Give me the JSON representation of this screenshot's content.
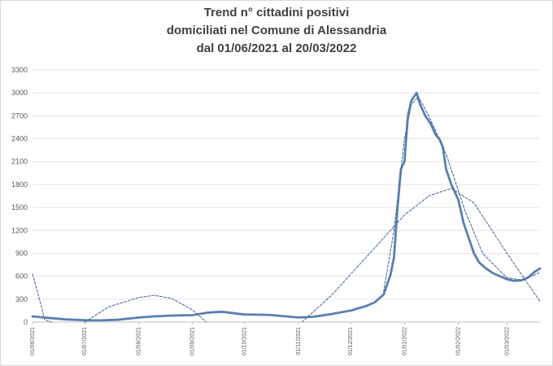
{
  "chart_data": {
    "type": "line",
    "title_lines": [
      "Trend n° cittadini positivi",
      "domiciliati nel Comune di Alessandria",
      "dal 01/06/2021 al 20/03/2022"
    ],
    "xlabel": "",
    "ylabel": "",
    "ylim": [
      0,
      3300
    ],
    "yticks": [
      0,
      300,
      600,
      900,
      1200,
      1500,
      1800,
      2100,
      2400,
      2700,
      3000,
      3300
    ],
    "xlim": [
      "01/06/2021",
      "20/03/2022"
    ],
    "xticks": [
      "01/06/2021",
      "01/07/2021",
      "01/08/2021",
      "01/09/2021",
      "01/10/2021",
      "01/11/2021",
      "01/12/2021",
      "01/01/2022",
      "01/02/2022",
      "01/03/2022"
    ],
    "grid": true,
    "legend": "none",
    "series": [
      {
        "style": "solid",
        "color": "#5b7fae",
        "points": [
          [
            "01/06/2021",
            75
          ],
          [
            "10/06/2021",
            55
          ],
          [
            "20/06/2021",
            35
          ],
          [
            "01/07/2021",
            25
          ],
          [
            "10/07/2021",
            22
          ],
          [
            "20/07/2021",
            30
          ],
          [
            "01/08/2021",
            60
          ],
          [
            "10/08/2021",
            75
          ],
          [
            "20/08/2021",
            85
          ],
          [
            "01/09/2021",
            90
          ],
          [
            "10/09/2021",
            125
          ],
          [
            "18/09/2021",
            135
          ],
          [
            "25/09/2021",
            115
          ],
          [
            "01/10/2021",
            100
          ],
          [
            "15/10/2021",
            95
          ],
          [
            "01/11/2021",
            60
          ],
          [
            "10/11/2021",
            70
          ],
          [
            "20/11/2021",
            105
          ],
          [
            "01/12/2021",
            150
          ],
          [
            "10/12/2021",
            210
          ],
          [
            "15/12/2021",
            260
          ],
          [
            "20/12/2021",
            360
          ],
          [
            "24/12/2021",
            620
          ],
          [
            "26/12/2021",
            850
          ],
          [
            "28/12/2021",
            1500
          ],
          [
            "30/12/2021",
            2000
          ],
          [
            "01/01/2022",
            2100
          ],
          [
            "03/01/2022",
            2700
          ],
          [
            "05/01/2022",
            2900
          ],
          [
            "08/01/2022",
            3000
          ],
          [
            "10/01/2022",
            2850
          ],
          [
            "13/01/2022",
            2700
          ],
          [
            "16/01/2022",
            2600
          ],
          [
            "19/01/2022",
            2450
          ],
          [
            "21/01/2022",
            2400
          ],
          [
            "23/01/2022",
            2300
          ],
          [
            "25/01/2022",
            2000
          ],
          [
            "28/01/2022",
            1800
          ],
          [
            "01/02/2022",
            1600
          ],
          [
            "04/02/2022",
            1300
          ],
          [
            "07/02/2022",
            1100
          ],
          [
            "10/02/2022",
            900
          ],
          [
            "13/02/2022",
            780
          ],
          [
            "17/02/2022",
            700
          ],
          [
            "21/02/2022",
            640
          ],
          [
            "25/02/2022",
            600
          ],
          [
            "01/03/2022",
            560
          ],
          [
            "05/03/2022",
            540
          ],
          [
            "09/03/2022",
            545
          ],
          [
            "13/03/2022",
            580
          ],
          [
            "17/03/2022",
            660
          ],
          [
            "20/03/2022",
            700
          ]
        ]
      },
      {
        "style": "dashed",
        "color": "#4f6fa3",
        "points": [
          [
            "01/06/2021",
            630
          ],
          [
            "05/06/2021",
            300
          ],
          [
            "08/06/2021",
            30
          ],
          [
            "12/06/2021",
            0
          ]
        ]
      },
      {
        "style": "dashed",
        "color": "#4f6fa3",
        "points": [
          [
            "01/07/2021",
            0
          ],
          [
            "15/07/2021",
            200
          ],
          [
            "01/08/2021",
            320
          ],
          [
            "10/08/2021",
            350
          ],
          [
            "20/08/2021",
            310
          ],
          [
            "01/09/2021",
            160
          ],
          [
            "09/09/2021",
            0
          ]
        ]
      },
      {
        "style": "dashed",
        "color": "#4f6fa3",
        "points": [
          [
            "03/11/2021",
            0
          ],
          [
            "20/11/2021",
            350
          ],
          [
            "10/12/2021",
            850
          ],
          [
            "01/01/2022",
            1400
          ],
          [
            "15/01/2022",
            1650
          ],
          [
            "28/01/2022",
            1750
          ],
          [
            "10/02/2022",
            1560
          ],
          [
            "01/03/2022",
            900
          ],
          [
            "20/03/2022",
            270
          ]
        ]
      },
      {
        "style": "dashed",
        "color": "#4f6fa3",
        "points": [
          [
            "20/12/2021",
            400
          ],
          [
            "26/12/2021",
            1200
          ],
          [
            "01/01/2022",
            2400
          ],
          [
            "05/01/2022",
            2850
          ],
          [
            "09/01/2022",
            2950
          ],
          [
            "15/01/2022",
            2700
          ],
          [
            "25/01/2022",
            2200
          ],
          [
            "05/02/2022",
            1450
          ],
          [
            "15/02/2022",
            900
          ],
          [
            "01/03/2022",
            580
          ],
          [
            "10/03/2022",
            550
          ],
          [
            "20/03/2022",
            650
          ]
        ]
      }
    ]
  }
}
